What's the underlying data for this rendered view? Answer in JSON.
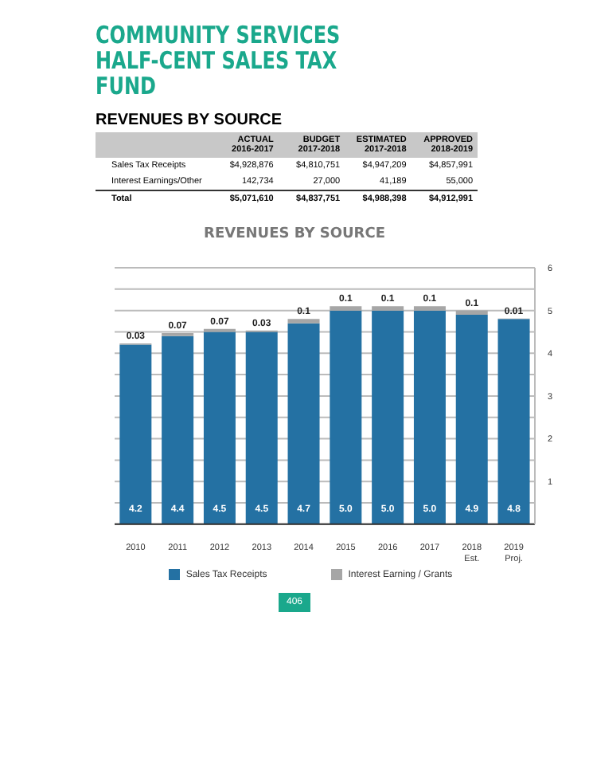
{
  "chart_data": [
    {
      "type": "other",
      "title": "COMMUNITY SERVICES HALF-CENT SALES TAX FUND",
      "subtitle": "REVENUES BY SOURCE",
      "annotations": [
        "ACTUAL 2016-2017",
        "BUDGET 2017-2018",
        "ESTIMATED 2017-2018",
        "APPROVED 2018-2019",
        "Sales Tax Receipts",
        "$4,928,876",
        "$4,810,751",
        "$4,947,209",
        "$4,857,991",
        "Interest Earnings/Other",
        "142,734",
        "27,000",
        "41,189",
        "55,000",
        "Total",
        "$5,071,610",
        "$4,837,751",
        "$4,988,398",
        "$4,912,991"
      ]
    },
    {
      "type": "bar",
      "title": "REVENUES BY SOURCE",
      "stacked": true,
      "categories": [
        "2010",
        "2011",
        "2012",
        "2013",
        "2014",
        "2015",
        "2016",
        "2017",
        "2018 Est.",
        "2019 Proj."
      ],
      "series": [
        {
          "name": "Sales Tax Receipts",
          "color": "#2471a3",
          "values": [
            4.2,
            4.4,
            4.5,
            4.5,
            4.7,
            5.0,
            5.0,
            5.0,
            4.9,
            4.8
          ],
          "value_labels": [
            "4.2",
            "4.4",
            "4.5",
            "4.5",
            "4.7",
            "5.0",
            "5.0",
            "5.0",
            "4.9",
            "4.8"
          ]
        },
        {
          "name": "Interest Earning / Grants",
          "color": "#a6a6a6",
          "values": [
            0.03,
            0.07,
            0.07,
            0.03,
            0.1,
            0.1,
            0.1,
            0.1,
            0.1,
            0.01
          ],
          "value_labels": [
            "0.03",
            "0.07",
            "0.07",
            "0.03",
            "0.1",
            "0.1",
            "0.1",
            "0.1",
            "0.1",
            "0.01"
          ]
        }
      ],
      "ylim": [
        0,
        6
      ],
      "yticks": [
        {
          "value": 0,
          "label": null
        },
        {
          "value": 0.5,
          "label": null
        },
        1,
        {
          "value": 1.5,
          "label": null
        },
        2,
        {
          "value": 2.5,
          "label": null
        },
        3,
        {
          "value": 3.5,
          "label": null
        },
        4,
        {
          "value": 4.5,
          "label": null
        },
        5,
        {
          "value": 5.5,
          "label": null
        },
        6
      ],
      "grid": "y",
      "legend": "bottom",
      "annotations": [
        "406"
      ]
    }
  ]
}
